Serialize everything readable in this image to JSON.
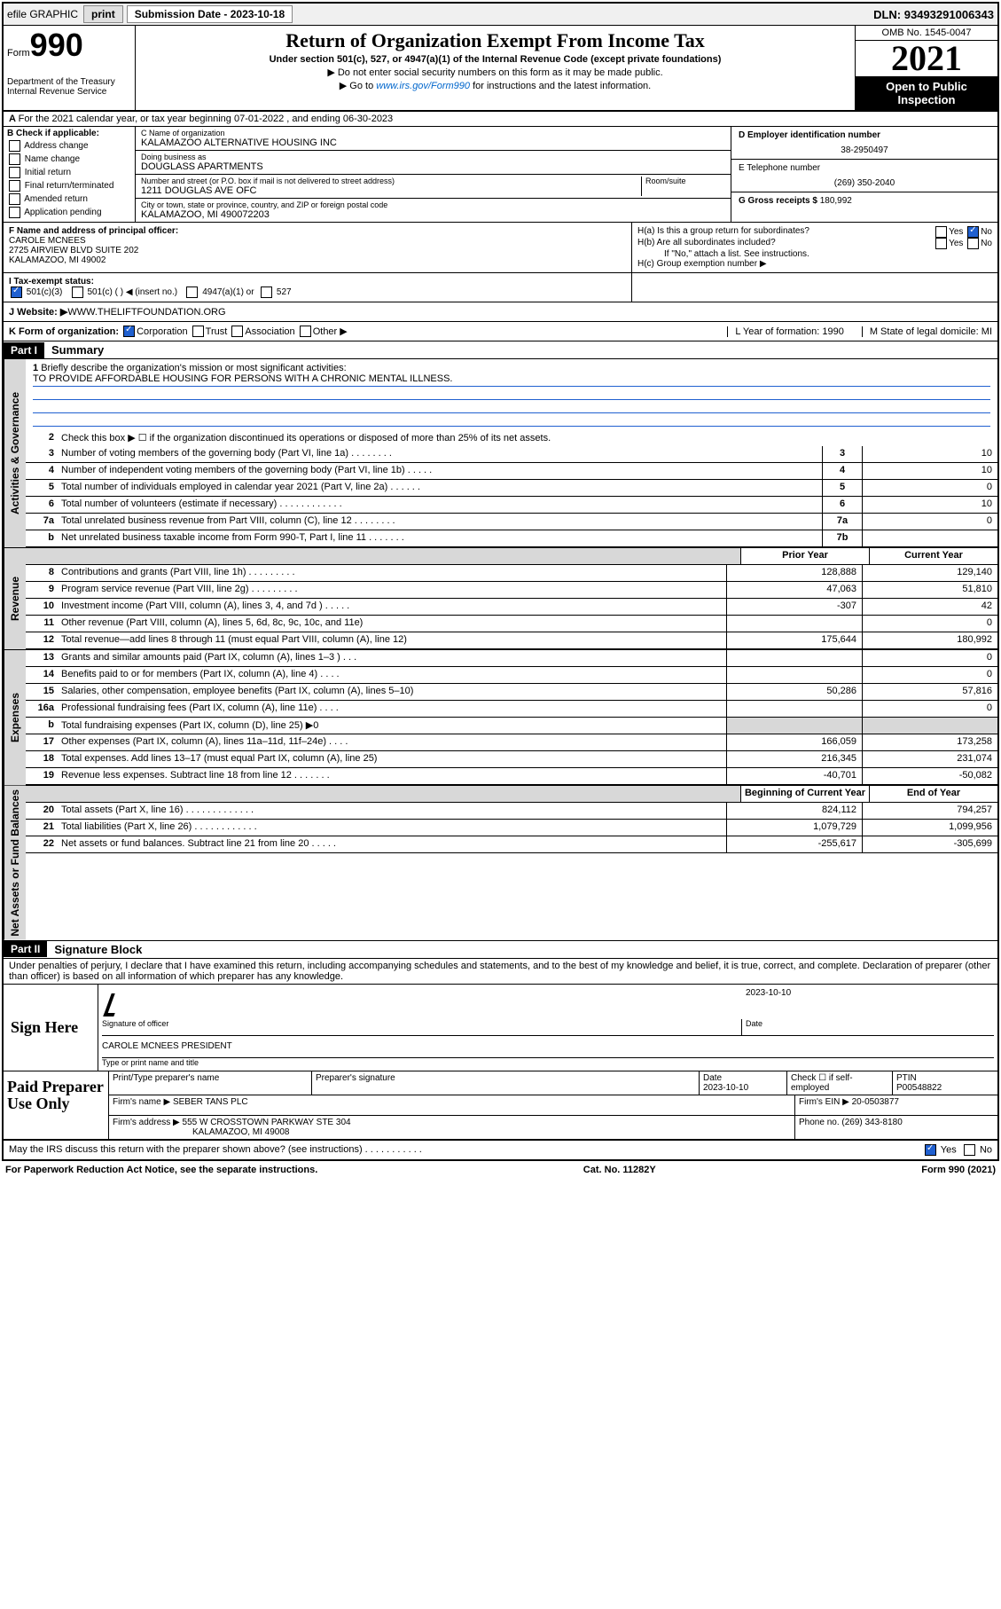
{
  "topbar": {
    "efile": "efile GRAPHIC",
    "print": "print",
    "subdate_label": "Submission Date - ",
    "subdate": "2023-10-18",
    "dln_label": "DLN: ",
    "dln": "93493291006343"
  },
  "header": {
    "form_word": "Form",
    "form_num": "990",
    "dept": "Department of the Treasury\nInternal Revenue Service",
    "title": "Return of Organization Exempt From Income Tax",
    "sub1": "Under section 501(c), 527, or 4947(a)(1) of the Internal Revenue Code (except private foundations)",
    "sub2": "▶ Do not enter social security numbers on this form as it may be made public.",
    "sub3_a": "▶ Go to ",
    "sub3_link": "www.irs.gov/Form990",
    "sub3_b": " for instructions and the latest information.",
    "omb": "OMB No. 1545-0047",
    "year": "2021",
    "open": "Open to Public Inspection"
  },
  "section_a": {
    "row_a": "For the 2021 calendar year, or tax year beginning 07-01-2022   , and ending 06-30-2023",
    "b_label": "B Check if applicable:",
    "b_opts": [
      "Address change",
      "Name change",
      "Initial return",
      "Final return/terminated",
      "Amended return",
      "Application pending"
    ],
    "c_name_lbl": "C Name of organization",
    "c_name": "KALAMAZOO ALTERNATIVE HOUSING INC",
    "dba_lbl": "Doing business as",
    "dba": "DOUGLASS APARTMENTS",
    "addr_lbl": "Number and street (or P.O. box if mail is not delivered to street address)",
    "room_lbl": "Room/suite",
    "addr": "1211 DOUGLAS AVE OFC",
    "city_lbl": "City or town, state or province, country, and ZIP or foreign postal code",
    "city": "KALAMAZOO, MI  490072203",
    "d_lbl": "D Employer identification number",
    "d_val": "38-2950497",
    "e_lbl": "E Telephone number",
    "e_val": "(269) 350-2040",
    "g_lbl": "G Gross receipts $ ",
    "g_val": "180,992"
  },
  "section_fh": {
    "f_lbl": "F Name and address of principal officer:",
    "f_name": "CAROLE MCNEES",
    "f_addr1": "2725 AIRVIEW BLVD SUITE 202",
    "f_addr2": "KALAMAZOO, MI  49002",
    "ha_lbl": "H(a)  Is this a group return for subordinates?",
    "hb_lbl": "H(b)  Are all subordinates included?",
    "hb_note": "If \"No,\" attach a list. See instructions.",
    "hc_lbl": "H(c)  Group exemption number ▶",
    "yes": "Yes",
    "no": "No"
  },
  "row_i": {
    "label": "I   Tax-exempt status:",
    "opts": [
      "501(c)(3)",
      "501(c) (  ) ◀ (insert no.)",
      "4947(a)(1) or",
      "527"
    ]
  },
  "row_j": {
    "label": "J   Website: ▶",
    "val": " WWW.THELIFTFOUNDATION.ORG"
  },
  "row_k": {
    "label": "K Form of organization:",
    "opts": [
      "Corporation",
      "Trust",
      "Association",
      "Other ▶"
    ],
    "l": "L Year of formation: 1990",
    "m": "M State of legal domicile: MI"
  },
  "part1": {
    "header": "Part I",
    "title": "Summary",
    "q1": "Briefly describe the organization's mission or most significant activities:",
    "mission": "TO PROVIDE AFFORDABLE HOUSING FOR PERSONS WITH A CHRONIC MENTAL ILLNESS.",
    "q2": "Check this box ▶ ☐  if the organization discontinued its operations or disposed of more than 25% of its net assets.",
    "vtab_ag": "Activities & Governance",
    "vtab_rev": "Revenue",
    "vtab_exp": "Expenses",
    "vtab_net": "Net Assets or Fund Balances",
    "rows_ag": [
      {
        "n": "3",
        "d": "Number of voting members of the governing body (Part VI, line 1a)   .    .    .    .    .    .    .    .",
        "b": "3",
        "v": "10"
      },
      {
        "n": "4",
        "d": "Number of independent voting members of the governing body (Part VI, line 1b)   .    .    .    .    .",
        "b": "4",
        "v": "10"
      },
      {
        "n": "5",
        "d": "Total number of individuals employed in calendar year 2021 (Part V, line 2a)    .    .    .    .    .    .",
        "b": "5",
        "v": "0"
      },
      {
        "n": "6",
        "d": "Total number of volunteers (estimate if necessary)    .    .    .    .    .    .    .    .    .    .    .    .",
        "b": "6",
        "v": "10"
      },
      {
        "n": "7a",
        "d": "Total unrelated business revenue from Part VIII, column (C), line 12   .    .    .    .    .    .    .    .",
        "b": "7a",
        "v": "0"
      },
      {
        "n": "b",
        "d": "Net unrelated business taxable income from Form 990-T, Part I, line 11   .    .    .    .    .    .    .",
        "b": "7b",
        "v": ""
      }
    ],
    "hdr_prior": "Prior Year",
    "hdr_curr": "Current Year",
    "rows_rev": [
      {
        "n": "8",
        "d": "Contributions and grants (Part VIII, line 1h)    .    .    .    .    .    .    .    .    .",
        "p": "128,888",
        "c": "129,140"
      },
      {
        "n": "9",
        "d": "Program service revenue (Part VIII, line 2g)    .    .    .    .    .    .    .    .    .",
        "p": "47,063",
        "c": "51,810"
      },
      {
        "n": "10",
        "d": "Investment income (Part VIII, column (A), lines 3, 4, and 7d )    .    .    .    .    .",
        "p": "-307",
        "c": "42"
      },
      {
        "n": "11",
        "d": "Other revenue (Part VIII, column (A), lines 5, 6d, 8c, 9c, 10c, and 11e)",
        "p": "",
        "c": "0"
      },
      {
        "n": "12",
        "d": "Total revenue—add lines 8 through 11 (must equal Part VIII, column (A), line 12)",
        "p": "175,644",
        "c": "180,992"
      }
    ],
    "rows_exp": [
      {
        "n": "13",
        "d": "Grants and similar amounts paid (Part IX, column (A), lines 1–3 )    .    .    .",
        "p": "",
        "c": "0"
      },
      {
        "n": "14",
        "d": "Benefits paid to or for members (Part IX, column (A), line 4)    .    .    .    .",
        "p": "",
        "c": "0"
      },
      {
        "n": "15",
        "d": "Salaries, other compensation, employee benefits (Part IX, column (A), lines 5–10)",
        "p": "50,286",
        "c": "57,816"
      },
      {
        "n": "16a",
        "d": "Professional fundraising fees (Part IX, column (A), line 11e)    .    .    .    .",
        "p": "",
        "c": "0"
      },
      {
        "n": "b",
        "d": "Total fundraising expenses (Part IX, column (D), line 25) ▶0",
        "p": "grey",
        "c": "grey"
      },
      {
        "n": "17",
        "d": "Other expenses (Part IX, column (A), lines 11a–11d, 11f–24e)    .    .    .    .",
        "p": "166,059",
        "c": "173,258"
      },
      {
        "n": "18",
        "d": "Total expenses. Add lines 13–17 (must equal Part IX, column (A), line 25)",
        "p": "216,345",
        "c": "231,074"
      },
      {
        "n": "19",
        "d": "Revenue less expenses. Subtract line 18 from line 12    .    .    .    .    .    .    .",
        "p": "-40,701",
        "c": "-50,082"
      }
    ],
    "hdr_beg": "Beginning of Current Year",
    "hdr_end": "End of Year",
    "rows_net": [
      {
        "n": "20",
        "d": "Total assets (Part X, line 16)    .    .    .    .    .    .    .    .    .    .    .    .    .",
        "p": "824,112",
        "c": "794,257"
      },
      {
        "n": "21",
        "d": "Total liabilities (Part X, line 26)    .    .    .    .    .    .    .    .    .    .    .    .",
        "p": "1,079,729",
        "c": "1,099,956"
      },
      {
        "n": "22",
        "d": "Net assets or fund balances. Subtract line 21 from line 20    .    .    .    .    .",
        "p": "-255,617",
        "c": "-305,699"
      }
    ]
  },
  "part2": {
    "header": "Part II",
    "title": "Signature Block",
    "decl": "Under penalties of perjury, I declare that I have examined this return, including accompanying schedules and statements, and to the best of my knowledge and belief, it is true, correct, and complete. Declaration of preparer (other than officer) is based on all information of which preparer has any knowledge.",
    "sign_here": "Sign Here",
    "sig_officer": "Signature of officer",
    "sig_date": "2023-10-10",
    "date_lbl": "Date",
    "officer_name": "CAROLE MCNEES  PRESIDENT",
    "type_lbl": "Type or print name and title",
    "paid": "Paid Preparer Use Only",
    "prep_name_lbl": "Print/Type preparer's name",
    "prep_sig_lbl": "Preparer's signature",
    "prep_date_lbl": "Date",
    "prep_date": "2023-10-10",
    "check_if": "Check ☐ if self-employed",
    "ptin_lbl": "PTIN",
    "ptin": "P00548822",
    "firm_name_lbl": "Firm's name     ▶ ",
    "firm_name": "SEBER TANS PLC",
    "firm_ein_lbl": "Firm's EIN ▶ ",
    "firm_ein": "20-0503877",
    "firm_addr_lbl": "Firm's address ▶ ",
    "firm_addr1": "555 W CROSSTOWN PARKWAY STE 304",
    "firm_addr2": "KALAMAZOO, MI  49008",
    "phone_lbl": "Phone no. ",
    "phone": "(269) 343-8180",
    "may_irs": "May the IRS discuss this return with the preparer shown above? (see instructions)    .    .    .    .    .    .    .    .    .    .    .",
    "yes": "Yes",
    "no": "No"
  },
  "footer": {
    "left": "For Paperwork Reduction Act Notice, see the separate instructions.",
    "center": "Cat. No. 11282Y",
    "right": "Form 990 (2021)"
  }
}
